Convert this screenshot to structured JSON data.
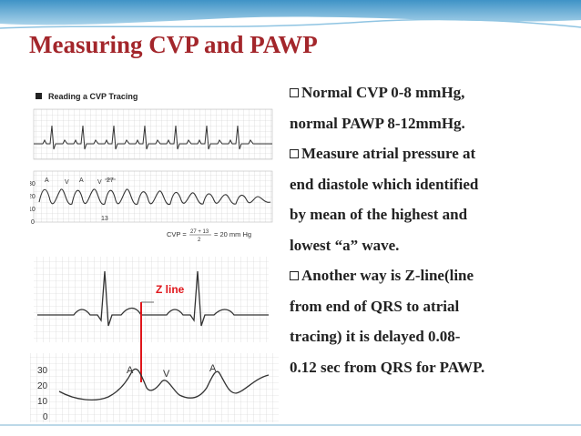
{
  "slide": {
    "title": "Measuring CVP and PAWP",
    "bullets": [
      {
        "lines": [
          "Normal CVP 0-8 mmHg,",
          "normal PAWP 8-12mmHg."
        ]
      },
      {
        "lines": [
          "Measure atrial pressure at",
          "end diastole which identified",
          "by mean of the highest and",
          "lowest “a” wave."
        ]
      },
      {
        "lines": [
          "Another way is Z-line(line",
          "from end of QRS to atrial",
          "tracing) it is delayed 0.08-",
          "0.12 sec from QRS for PAWP."
        ]
      }
    ]
  },
  "figure_top": {
    "heading": "Reading a CVP Tracing",
    "scale_ticks": [
      "30",
      "20",
      "10",
      "0"
    ],
    "wave_labels": [
      "A",
      "V",
      "A",
      "V"
    ],
    "peak_value": "27",
    "trough_value": "13",
    "formula": "CVP = 27 + 13 / 2 = 20 mm Hg",
    "formula_parts": {
      "lhs": "CVP =",
      "numerator": "27 + 13",
      "denominator": "2",
      "rhs": "= 20 mm Hg"
    }
  },
  "figure_bottom": {
    "zline_label": "Z line",
    "scale_ticks": [
      "30",
      "20",
      "10",
      "0"
    ],
    "wave_labels": [
      "A",
      "V",
      "A"
    ]
  },
  "colors": {
    "title": "#a3262b",
    "zline": "#e0161b",
    "band": "#5aa5cf",
    "grid": "#c9c9c9"
  }
}
